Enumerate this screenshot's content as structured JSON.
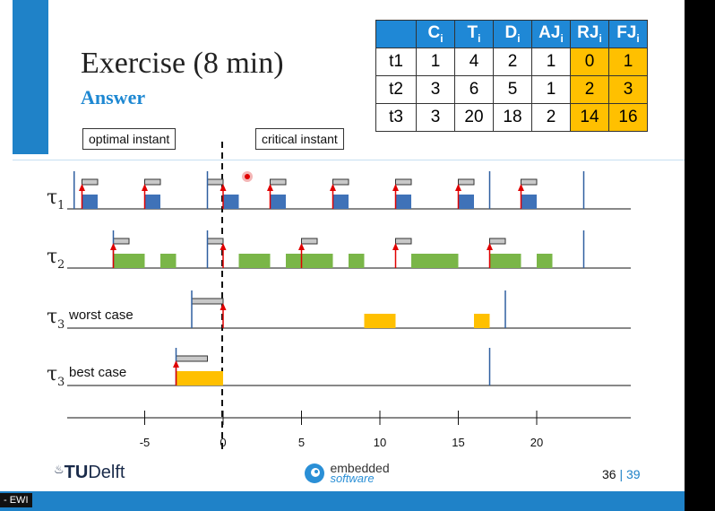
{
  "slide": {
    "title": "Exercise (8 min)",
    "subtitle": "Answer",
    "boxes": {
      "optimal": "optimal instant",
      "critical": "critical instant"
    },
    "footer": {
      "logo_tu": "TU",
      "logo_delft": "Delft",
      "logo_emb_top": "embedded",
      "logo_emb_bottom": "software",
      "page": "36",
      "separator": "|",
      "total": "39",
      "ewi": "- EWI"
    }
  },
  "table": {
    "headers": [
      "",
      "C",
      "T",
      "D",
      "AJ",
      "RJ",
      "FJ"
    ],
    "header_sub": "i",
    "rows": [
      {
        "name": "t1",
        "values": [
          "1",
          "4",
          "2",
          "1",
          "0",
          "1"
        ]
      },
      {
        "name": "t2",
        "values": [
          "3",
          "6",
          "5",
          "1",
          "2",
          "3"
        ]
      },
      {
        "name": "t3",
        "values": [
          "3",
          "20",
          "18",
          "2",
          "14",
          "16"
        ]
      }
    ],
    "highlight_color": "#ffc000",
    "header_color": "#1f88d6"
  },
  "diagram": {
    "axis_ticks": [
      "-5",
      "0",
      "5",
      "10",
      "15",
      "20"
    ],
    "tick_values": [
      -5,
      0,
      5,
      10,
      15,
      20
    ],
    "colors": {
      "tau1": "#3f72b8",
      "tau2": "#7ab648",
      "tau3": "#ffc000",
      "arrow": "#e00000",
      "jitter": "#c8c8c8",
      "deadline": "#2f5fa0"
    },
    "rows": [
      {
        "label": "τ",
        "sub": "1",
        "suffix": "",
        "deadlines": [
          -9.5,
          -1.0,
          17.0,
          23.0
        ],
        "releases": [
          -9,
          -5,
          -1,
          0,
          3,
          7,
          11,
          15,
          19
        ],
        "arrows": [
          -9,
          -5,
          0,
          3,
          7,
          11,
          15,
          19
        ],
        "jitter": [
          [
            -9,
            -8
          ],
          [
            -5,
            -4
          ],
          [
            -1,
            0
          ],
          [
            3,
            4
          ],
          [
            7,
            8
          ],
          [
            11,
            12
          ],
          [
            15,
            16
          ],
          [
            19,
            20
          ]
        ],
        "exec": [
          [
            -9,
            -8
          ],
          [
            -5,
            -4
          ],
          [
            0,
            1
          ],
          [
            3,
            4
          ],
          [
            7,
            8
          ],
          [
            11,
            12
          ],
          [
            15,
            16
          ],
          [
            19,
            20
          ]
        ]
      },
      {
        "label": "τ",
        "sub": "2",
        "suffix": "",
        "deadlines": [
          -7,
          -1,
          23
        ],
        "arrows": [
          -7,
          0,
          5,
          11,
          17
        ],
        "jitter": [
          [
            -7,
            -6
          ],
          [
            -1,
            0
          ],
          [
            5,
            6
          ],
          [
            11,
            12
          ],
          [
            17,
            18
          ]
        ],
        "exec": [
          [
            -7,
            -5
          ],
          [
            -4,
            -3
          ],
          [
            1,
            3
          ],
          [
            4,
            7
          ],
          [
            8,
            9
          ],
          [
            12,
            15
          ],
          [
            17,
            19
          ],
          [
            20,
            21
          ]
        ]
      },
      {
        "label": "τ",
        "sub": "3",
        "suffix": "worst case",
        "deadlines": [
          -2,
          18
        ],
        "arrows": [
          0
        ],
        "jitter": [
          [
            -2,
            0
          ]
        ],
        "exec": [
          [
            9,
            11
          ],
          [
            16,
            17
          ]
        ]
      },
      {
        "label": "τ",
        "sub": "3",
        "suffix": "best case",
        "deadlines": [
          -3,
          17
        ],
        "arrows": [
          -3
        ],
        "jitter": [
          [
            -3,
            -1
          ]
        ],
        "exec": [
          [
            -3,
            0
          ]
        ]
      }
    ]
  }
}
